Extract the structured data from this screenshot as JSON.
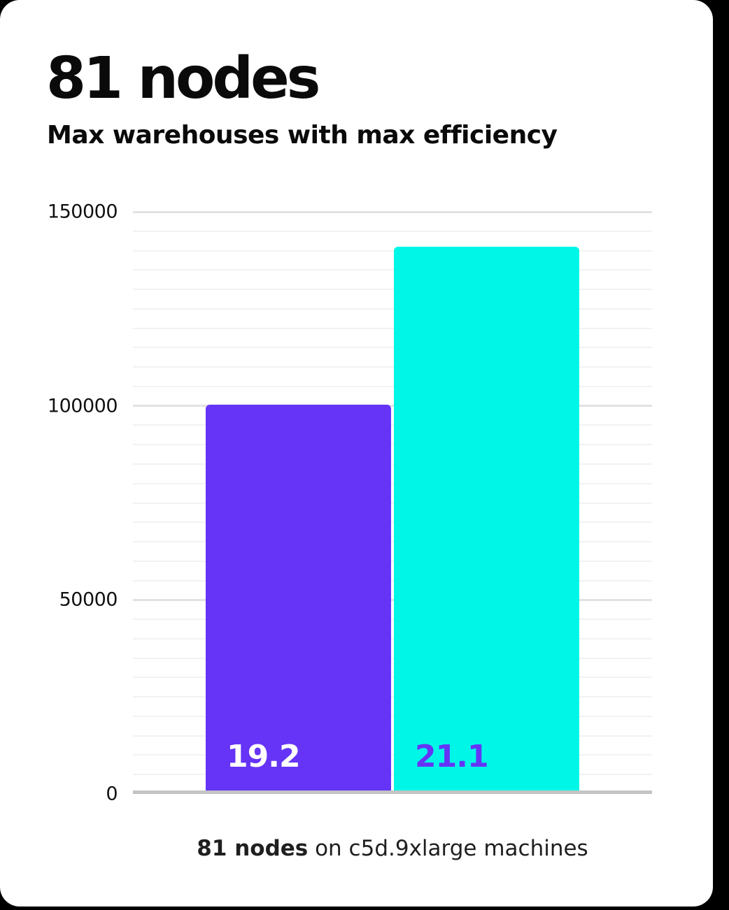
{
  "page": {
    "background_color": "#000000",
    "card_color": "#ffffff"
  },
  "header": {
    "title": "81 nodes",
    "subtitle": "Max warehouses with max efficiency"
  },
  "caption": {
    "bold": "81 nodes",
    "rest": "on c5d.9xlarge machines"
  },
  "chart_data": {
    "type": "bar",
    "title": "81 nodes",
    "subtitle": "Max warehouses with max efficiency",
    "categories": [
      "19.2",
      "21.1"
    ],
    "values": [
      99400,
      140100
    ],
    "bar_labels": [
      "19.2",
      "21.1"
    ],
    "bar_colors": [
      "#6534f6",
      "#00f7e8"
    ],
    "bar_label_colors": [
      "#ffffff",
      "#6534f6"
    ],
    "xlabel": "",
    "ylabel": "",
    "ylim": [
      0,
      150000
    ],
    "yticks": [
      0,
      50000,
      100000,
      150000
    ],
    "ytick_labels": [
      "0",
      "50000",
      "100000",
      "150000"
    ],
    "minor_gridline_step": 5000,
    "grid": true,
    "legend": false,
    "caption": "81 nodes on c5d.9xlarge machines",
    "gridline_minor_color": "#f2f2f2",
    "gridline_major_color": "#e2e2e2",
    "baseline_color": "#c4c4c4"
  }
}
